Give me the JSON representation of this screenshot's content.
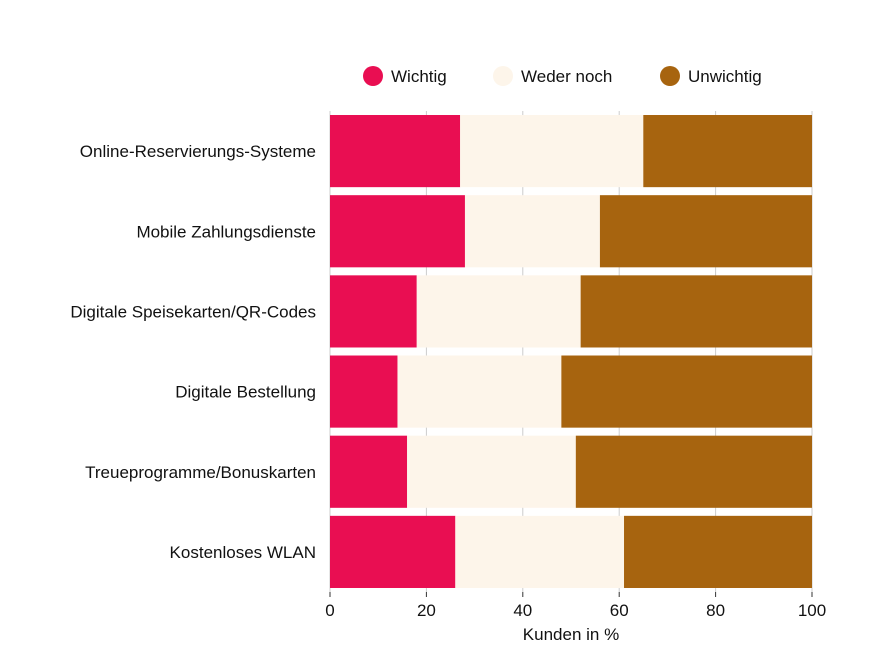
{
  "chart_data": {
    "type": "bar",
    "orientation": "horizontal",
    "stacked": true,
    "categories": [
      "Online-Reservierungs-Systeme",
      "Mobile Zahlungsdienste",
      "Digitale Speisekarten/QR-Codes",
      "Digitale Bestellung",
      "Treueprogramme/Bonuskarten",
      "Kostenloses WLAN"
    ],
    "series": [
      {
        "name": "Wichtig",
        "color": "#e90e52",
        "values": [
          27,
          28,
          18,
          14,
          16,
          26
        ]
      },
      {
        "name": "Weder noch",
        "color": "#fdf5ea",
        "values": [
          38,
          28,
          34,
          34,
          35,
          35
        ]
      },
      {
        "name": "Unwichtig",
        "color": "#a7640f",
        "values": [
          35,
          44,
          48,
          52,
          49,
          39
        ]
      }
    ],
    "xlabel": "Kunden in %",
    "ylabel": "",
    "xlim": [
      0,
      100
    ],
    "xticks": [
      "0",
      "20",
      "40",
      "60",
      "80",
      "100"
    ],
    "grid": "vertical",
    "legend": "top"
  }
}
